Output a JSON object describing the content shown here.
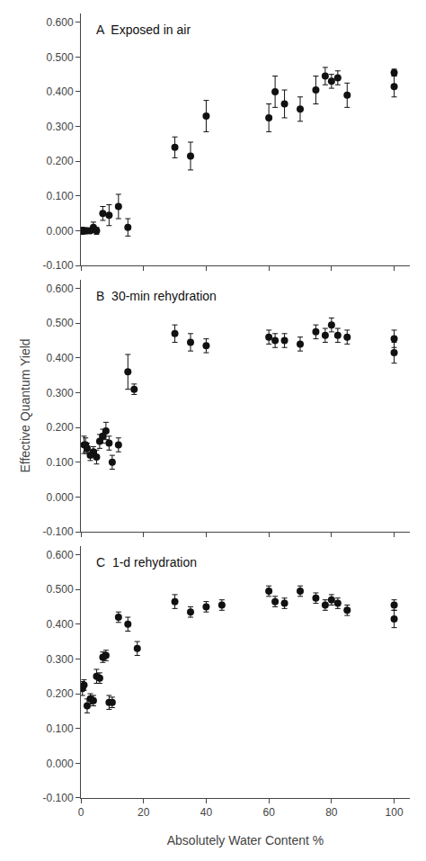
{
  "chart_data": [
    {
      "type": "scatter",
      "title": "A  Exposed in air",
      "marker": "circle",
      "color": "#111111",
      "grid": false,
      "tick_labels": "y",
      "x": [
        0.3,
        0.5,
        0.8,
        1.0,
        1.5,
        2.0,
        3.0,
        4.0,
        5.0,
        7.0,
        9.0,
        12.0,
        15.0,
        30.0,
        35.0,
        40.0,
        60.0,
        62.0,
        65.0,
        70.0,
        75.0,
        78.0,
        80.0,
        82.0,
        85.0,
        100.0,
        100.0
      ],
      "values": [
        0.0,
        0.0,
        0.0,
        0.0,
        0.0,
        0.0,
        0.0,
        0.01,
        0.0,
        0.05,
        0.045,
        0.07,
        0.01,
        0.24,
        0.215,
        0.33,
        0.325,
        0.4,
        0.365,
        0.35,
        0.405,
        0.445,
        0.43,
        0.44,
        0.39,
        0.455,
        0.415
      ],
      "yerr": [
        0.01,
        0.005,
        0.005,
        0.005,
        0.005,
        0.005,
        0.005,
        0.015,
        0.01,
        0.02,
        0.03,
        0.035,
        0.025,
        0.03,
        0.04,
        0.045,
        0.04,
        0.045,
        0.04,
        0.035,
        0.04,
        0.025,
        0.02,
        0.02,
        0.035,
        0.01,
        0.03
      ],
      "xlim": [
        0,
        105
      ],
      "xticks": [
        0,
        20,
        40,
        60,
        80,
        100
      ],
      "ylim": [
        -0.1,
        0.625
      ],
      "yticks": [
        {
          "value": -0.1,
          "label": "-0.100"
        },
        {
          "value": 0.0,
          "label": "0.000"
        },
        {
          "value": 0.1,
          "label": "0.100"
        },
        {
          "value": 0.2,
          "label": "0.200"
        },
        {
          "value": 0.3,
          "label": "0.300"
        },
        {
          "value": 0.4,
          "label": "0.400"
        },
        {
          "value": 0.5,
          "label": "0.500"
        },
        {
          "value": 0.6,
          "label": "0.600"
        }
      ]
    },
    {
      "type": "scatter",
      "title": "B  30-min rehydration",
      "ylabel": "Effective Quantum Yield",
      "marker": "circle",
      "color": "#111111",
      "grid": false,
      "tick_labels": "y",
      "x": [
        1.0,
        1.5,
        2.0,
        3.0,
        4.0,
        5.0,
        6.0,
        7.0,
        8.0,
        9.0,
        10.0,
        12.0,
        15.0,
        17.0,
        30.0,
        35.0,
        40.0,
        60.0,
        62.0,
        65.0,
        70.0,
        75.0,
        78.0,
        80.0,
        82.0,
        85.0,
        100.0,
        100.0
      ],
      "values": [
        0.15,
        0.15,
        0.14,
        0.12,
        0.13,
        0.115,
        0.16,
        0.175,
        0.19,
        0.155,
        0.1,
        0.15,
        0.36,
        0.31,
        0.47,
        0.445,
        0.435,
        0.46,
        0.45,
        0.45,
        0.44,
        0.475,
        0.465,
        0.495,
        0.465,
        0.46,
        0.455,
        0.415
      ],
      "yerr": [
        0.025,
        0.02,
        0.015,
        0.015,
        0.015,
        0.02,
        0.02,
        0.02,
        0.025,
        0.02,
        0.02,
        0.02,
        0.05,
        0.015,
        0.025,
        0.025,
        0.02,
        0.02,
        0.02,
        0.02,
        0.02,
        0.02,
        0.02,
        0.02,
        0.02,
        0.02,
        0.025,
        0.03
      ],
      "xlim": [
        0,
        105
      ],
      "xticks": [
        0,
        20,
        40,
        60,
        80,
        100
      ],
      "ylim": [
        -0.1,
        0.625
      ],
      "yticks": [
        {
          "value": -0.1,
          "label": "-0.100"
        },
        {
          "value": 0.0,
          "label": "0.000"
        },
        {
          "value": 0.1,
          "label": "0.100"
        },
        {
          "value": 0.2,
          "label": "0.200"
        },
        {
          "value": 0.3,
          "label": "0.300"
        },
        {
          "value": 0.4,
          "label": "0.400"
        },
        {
          "value": 0.5,
          "label": "0.500"
        },
        {
          "value": 0.6,
          "label": "0.600"
        }
      ]
    },
    {
      "type": "scatter",
      "title": "C  1-d rehydration",
      "xlabel": "Absolutely Water Content %",
      "marker": "circle",
      "color": "#111111",
      "grid": false,
      "x": [
        0.5,
        1.0,
        2.0,
        3.0,
        4.0,
        5.0,
        6.0,
        7.0,
        8.0,
        9.0,
        10.0,
        12.0,
        15.0,
        18.0,
        30.0,
        35.0,
        40.0,
        45.0,
        60.0,
        62.0,
        65.0,
        70.0,
        75.0,
        78.0,
        80.0,
        82.0,
        85.0,
        100.0,
        100.0
      ],
      "values": [
        0.215,
        0.225,
        0.165,
        0.185,
        0.18,
        0.25,
        0.245,
        0.305,
        0.31,
        0.175,
        0.175,
        0.42,
        0.4,
        0.33,
        0.465,
        0.435,
        0.45,
        0.455,
        0.495,
        0.465,
        0.46,
        0.495,
        0.475,
        0.455,
        0.47,
        0.46,
        0.44,
        0.455,
        0.415
      ],
      "yerr": [
        0.02,
        0.015,
        0.02,
        0.015,
        0.015,
        0.02,
        0.015,
        0.015,
        0.015,
        0.02,
        0.015,
        0.015,
        0.02,
        0.02,
        0.02,
        0.015,
        0.015,
        0.015,
        0.015,
        0.015,
        0.015,
        0.015,
        0.015,
        0.015,
        0.015,
        0.015,
        0.015,
        0.015,
        0.025
      ],
      "xlim": [
        0,
        105
      ],
      "xticks": [
        0,
        20,
        40,
        60,
        80,
        100
      ],
      "ylim": [
        -0.1,
        0.625
      ],
      "yticks": [
        {
          "value": -0.1,
          "label": "-0.100"
        },
        {
          "value": 0.0,
          "label": "0.000"
        },
        {
          "value": 0.1,
          "label": "0.100"
        },
        {
          "value": 0.2,
          "label": "0.200"
        },
        {
          "value": 0.3,
          "label": "0.300"
        },
        {
          "value": 0.4,
          "label": "0.400"
        },
        {
          "value": 0.5,
          "label": "0.500"
        },
        {
          "value": 0.6,
          "label": "0.600"
        }
      ]
    }
  ]
}
